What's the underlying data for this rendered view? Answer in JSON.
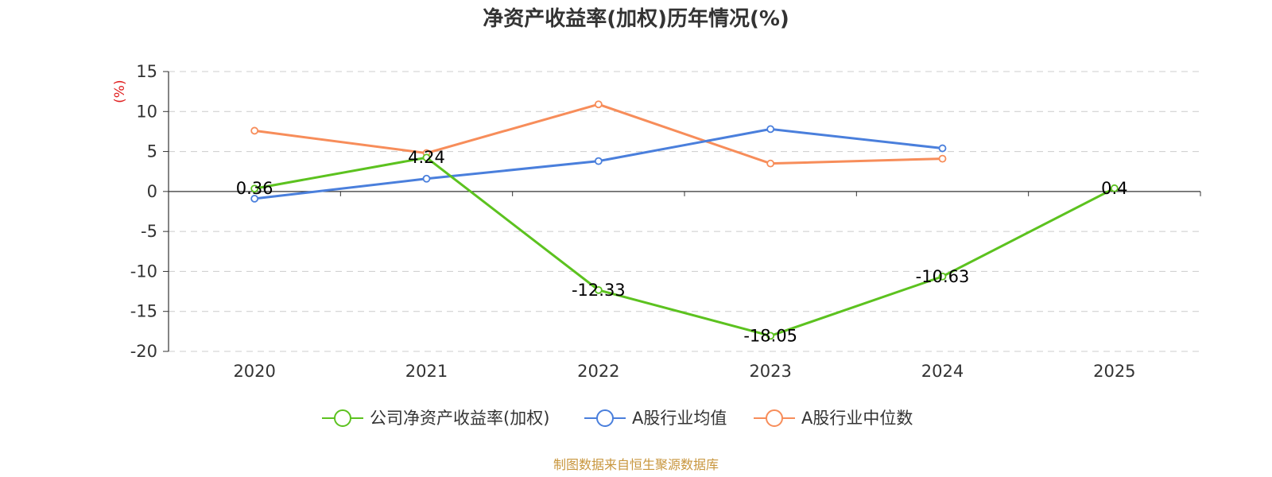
{
  "chart_data": {
    "type": "line",
    "title": "净资产收益率(加权)历年情况(%)",
    "ylabel": "(%)",
    "ylim": [
      -20,
      15
    ],
    "y_ticks": [
      15,
      10,
      5,
      0,
      -5,
      -10,
      -15,
      -20
    ],
    "categories": [
      "2020",
      "2021",
      "2022",
      "2023",
      "2024",
      "2025"
    ],
    "grid": true,
    "legend_position": "bottom",
    "series": [
      {
        "name": "公司净资产收益率(加权)",
        "color": "#5cc21f",
        "values": [
          0.36,
          4.24,
          -12.33,
          -18.05,
          -10.63,
          0.4
        ],
        "labels": [
          "0.36",
          "4.24",
          "-12.33",
          "-18.05",
          "-10.63",
          "0.4"
        ]
      },
      {
        "name": "A股行业均值",
        "color": "#4a7fdc",
        "values": [
          -0.9,
          1.6,
          3.8,
          7.8,
          5.4,
          null
        ]
      },
      {
        "name": "A股行业中位数",
        "color": "#f78d5a",
        "values": [
          7.6,
          4.8,
          10.9,
          3.5,
          4.1,
          null
        ]
      }
    ],
    "source_note": "制图数据来自恒生聚源数据库",
    "colors": {
      "ylabel": "#e02020",
      "source_note": "#c8963e"
    }
  }
}
